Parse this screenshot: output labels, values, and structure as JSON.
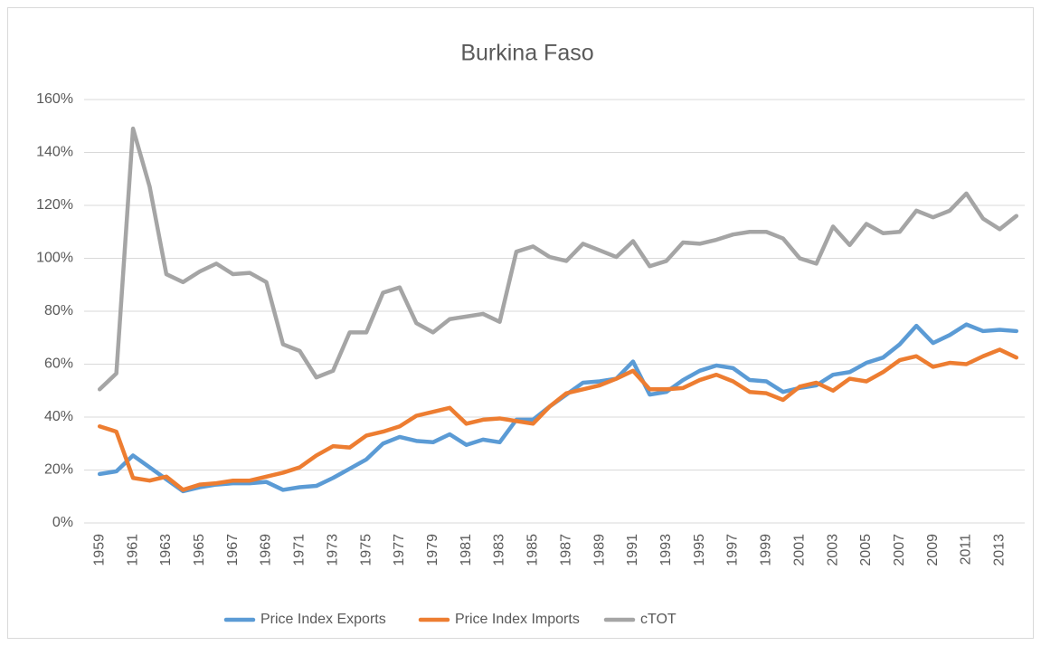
{
  "chart_data": {
    "type": "line",
    "title": "Burkina Faso",
    "categories": [
      "1959",
      null,
      "1961",
      null,
      "1963",
      null,
      "1965",
      null,
      "1967",
      null,
      "1969",
      null,
      "1971",
      null,
      "1973",
      null,
      "1975",
      null,
      "1977",
      null,
      "1979",
      null,
      "1981",
      null,
      "1983",
      null,
      "1985",
      null,
      "1987",
      null,
      "1989",
      null,
      "1991",
      null,
      "1993",
      null,
      "1995",
      null,
      "1997",
      null,
      "1999",
      null,
      "2001",
      null,
      "2003",
      null,
      "2005",
      null,
      "2007",
      null,
      "2009",
      null,
      "2011",
      null,
      "2013",
      null
    ],
    "series": [
      {
        "name": "Price Index Exports",
        "color": "#5b9bd5",
        "values": [
          18.5,
          19.5,
          25.5,
          21,
          16.5,
          12,
          13.5,
          14.5,
          15,
          15,
          15.5,
          12.5,
          13.5,
          14,
          17,
          20.5,
          24,
          30,
          32.5,
          31,
          30.5,
          33.5,
          29.5,
          31.5,
          30.5,
          39,
          39,
          44,
          48.5,
          53,
          53.5,
          54.5,
          61,
          48.5,
          49.5,
          54,
          57.5,
          59.5,
          58.5,
          54,
          53.5,
          49.5,
          51,
          52,
          56,
          57,
          60.5,
          62.5,
          67.5,
          74.5,
          68,
          71,
          75,
          72.5,
          73,
          72.5
        ]
      },
      {
        "name": "Price Index Imports",
        "color": "#ed7d31",
        "values": [
          36.5,
          34.5,
          17,
          16,
          17.5,
          12.5,
          14.5,
          15,
          16,
          16,
          17.5,
          19,
          21,
          25.5,
          29,
          28.5,
          33,
          34.5,
          36.5,
          40.5,
          42,
          43.5,
          37.5,
          39,
          39.5,
          38.5,
          37.5,
          44,
          49,
          50.5,
          52,
          54.5,
          57.5,
          50.5,
          50.5,
          51,
          54,
          56,
          53.5,
          49.5,
          49,
          46.5,
          51.5,
          53,
          50,
          54.5,
          53.5,
          57,
          61.5,
          63,
          59,
          60.5,
          60,
          63,
          65.5,
          62.5
        ]
      },
      {
        "name": "cTOT",
        "color": "#a5a5a5",
        "values": [
          50.5,
          56.5,
          149,
          127,
          94,
          91,
          95,
          98,
          94,
          94.5,
          91,
          67.5,
          65,
          55,
          57.5,
          72,
          72,
          87,
          89,
          75.5,
          72,
          77,
          78,
          79,
          76,
          102.5,
          104.5,
          100.5,
          99,
          105.5,
          103,
          100.5,
          106.5,
          97,
          99,
          106,
          105.5,
          107,
          109,
          110,
          110,
          107.5,
          100,
          98,
          112,
          105,
          113,
          109.5,
          110,
          118,
          115.5,
          118,
          124.5,
          115,
          111,
          116
        ]
      }
    ],
    "ylim": [
      0,
      160
    ],
    "yticks": [
      {
        "value": 0,
        "label": "0%"
      },
      {
        "value": 20,
        "label": "20%"
      },
      {
        "value": 40,
        "label": "40%"
      },
      {
        "value": 60,
        "label": "60%"
      },
      {
        "value": 80,
        "label": "80%"
      },
      {
        "value": 100,
        "label": "100%"
      },
      {
        "value": 120,
        "label": "120%"
      },
      {
        "value": 140,
        "label": "140%"
      },
      {
        "value": 160,
        "label": "160%"
      }
    ],
    "grid": true,
    "legend": "bottom"
  }
}
